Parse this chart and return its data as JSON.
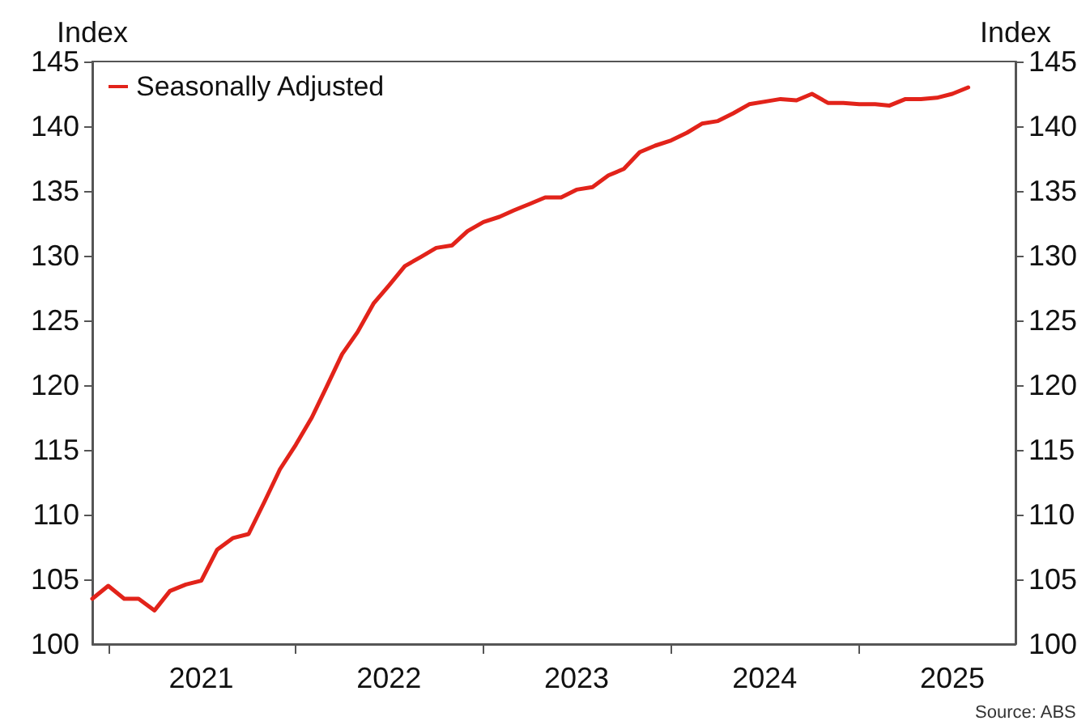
{
  "chart_data": {
    "type": "line",
    "ylabel": "Index",
    "y2label": "Index",
    "annotations": [
      "Source: ABS"
    ],
    "x": [
      "2020-12",
      "2021-01",
      "2021-02",
      "2021-03",
      "2021-04",
      "2021-05",
      "2021-06",
      "2021-07",
      "2021-08",
      "2021-09",
      "2021-10",
      "2021-11",
      "2021-12",
      "2022-01",
      "2022-02",
      "2022-03",
      "2022-04",
      "2022-05",
      "2022-06",
      "2022-07",
      "2022-08",
      "2022-09",
      "2022-10",
      "2022-11",
      "2022-12",
      "2023-01",
      "2023-02",
      "2023-03",
      "2023-04",
      "2023-05",
      "2023-06",
      "2023-07",
      "2023-08",
      "2023-09",
      "2023-10",
      "2023-11",
      "2023-12",
      "2024-01",
      "2024-02",
      "2024-03",
      "2024-04",
      "2024-05",
      "2024-06",
      "2024-07",
      "2024-08",
      "2024-09",
      "2024-10",
      "2024-11",
      "2024-12",
      "2025-01",
      "2025-02",
      "2025-03",
      "2025-04",
      "2025-05",
      "2025-06",
      "2025-07",
      "2025-08"
    ],
    "series": [
      {
        "name": "Seasonally Adjusted",
        "color": "#e2231a",
        "values": [
          103.5,
          104.5,
          103.5,
          103.5,
          102.6,
          104.1,
          104.6,
          104.9,
          107.3,
          108.2,
          108.5,
          111.0,
          113.5,
          115.4,
          117.5,
          119.8,
          122.4,
          124.1,
          126.3,
          127.7,
          129.2,
          129.9,
          130.6,
          130.8,
          131.9,
          132.6,
          133.0,
          133.5,
          134.0,
          134.5,
          134.5,
          135.1,
          135.3,
          136.2,
          136.7,
          138.0,
          138.5,
          138.9,
          139.5,
          140.2,
          140.4,
          141.0,
          141.7,
          141.9,
          142.1,
          142.0,
          142.5,
          141.8,
          141.8,
          141.7,
          141.7,
          141.6,
          142.1,
          142.1,
          142.2,
          142.5,
          143.0
        ]
      }
    ],
    "xlim": [
      "2020-12",
      "2025-11"
    ],
    "xticks": [
      {
        "value": "2021-01",
        "label": null
      },
      {
        "value": "2021-07",
        "label": "2021"
      },
      {
        "value": "2022-01",
        "label": null
      },
      {
        "value": "2022-07",
        "label": "2022"
      },
      {
        "value": "2023-01",
        "label": null
      },
      {
        "value": "2023-07",
        "label": "2023"
      },
      {
        "value": "2024-01",
        "label": null
      },
      {
        "value": "2024-07",
        "label": "2024"
      },
      {
        "value": "2025-01",
        "label": null
      },
      {
        "value": "2025-07",
        "label": "2025"
      }
    ],
    "ylim": [
      100,
      145
    ],
    "yticks": [
      100,
      105,
      110,
      115,
      120,
      125,
      130,
      135,
      140,
      145
    ],
    "y2lim": [
      100,
      145
    ],
    "y2ticks": [
      100,
      105,
      110,
      115,
      120,
      125,
      130,
      135,
      140,
      145
    ],
    "legend": "top left",
    "grid": false,
    "marker": "none",
    "line_style": "solid"
  }
}
